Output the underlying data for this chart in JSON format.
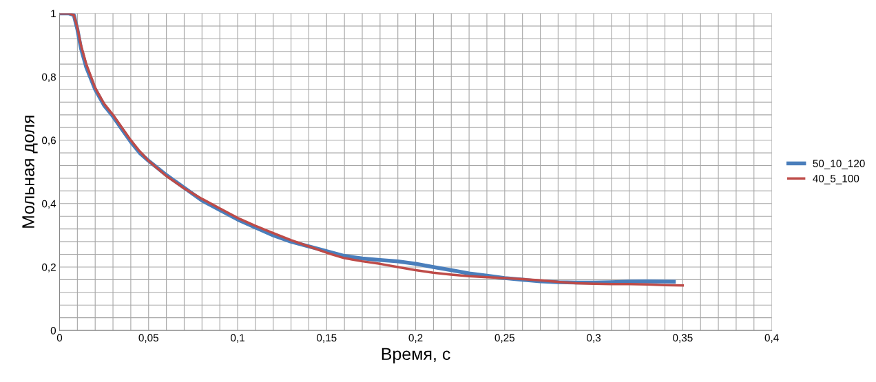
{
  "chart_data": {
    "type": "line",
    "xlabel": "Время, с",
    "ylabel": "Мольная доля",
    "xlim": [
      0,
      0.4
    ],
    "ylim": [
      0,
      1
    ],
    "xticks": [
      0,
      {
        "value": 0.01,
        "label": null
      },
      {
        "value": 0.02,
        "label": null
      },
      {
        "value": 0.03,
        "label": null
      },
      {
        "value": 0.04,
        "label": null
      },
      {
        "value": 0.05,
        "label": "0,05"
      },
      {
        "value": 0.06,
        "label": null
      },
      {
        "value": 0.07,
        "label": null
      },
      {
        "value": 0.08,
        "label": null
      },
      {
        "value": 0.09,
        "label": null
      },
      {
        "value": 0.1,
        "label": "0,1"
      },
      {
        "value": 0.11,
        "label": null
      },
      {
        "value": 0.12,
        "label": null
      },
      {
        "value": 0.13,
        "label": null
      },
      {
        "value": 0.14,
        "label": null
      },
      {
        "value": 0.15,
        "label": "0,15"
      },
      {
        "value": 0.16,
        "label": null
      },
      {
        "value": 0.17,
        "label": null
      },
      {
        "value": 0.18,
        "label": null
      },
      {
        "value": 0.19,
        "label": null
      },
      {
        "value": 0.2,
        "label": "0,2"
      },
      {
        "value": 0.21,
        "label": null
      },
      {
        "value": 0.22,
        "label": null
      },
      {
        "value": 0.23,
        "label": null
      },
      {
        "value": 0.24,
        "label": null
      },
      {
        "value": 0.25,
        "label": "0,25"
      },
      {
        "value": 0.26,
        "label": null
      },
      {
        "value": 0.27,
        "label": null
      },
      {
        "value": 0.28,
        "label": null
      },
      {
        "value": 0.29,
        "label": null
      },
      {
        "value": 0.3,
        "label": "0,3"
      },
      {
        "value": 0.31,
        "label": null
      },
      {
        "value": 0.32,
        "label": null
      },
      {
        "value": 0.33,
        "label": null
      },
      {
        "value": 0.34,
        "label": null
      },
      {
        "value": 0.35,
        "label": "0,35"
      },
      {
        "value": 0.36,
        "label": null
      },
      {
        "value": 0.37,
        "label": null
      },
      {
        "value": 0.38,
        "label": null
      },
      {
        "value": 0.39,
        "label": null
      },
      {
        "value": 0.4,
        "label": "0,4"
      }
    ],
    "yticks": [
      0,
      {
        "value": 0.04,
        "label": null
      },
      {
        "value": 0.08,
        "label": null
      },
      {
        "value": 0.12,
        "label": null
      },
      {
        "value": 0.16,
        "label": null
      },
      {
        "value": 0.2,
        "label": "0,2"
      },
      {
        "value": 0.24,
        "label": null
      },
      {
        "value": 0.28,
        "label": null
      },
      {
        "value": 0.32,
        "label": null
      },
      {
        "value": 0.36,
        "label": null
      },
      {
        "value": 0.4,
        "label": "0,4"
      },
      {
        "value": 0.44,
        "label": null
      },
      {
        "value": 0.48,
        "label": null
      },
      {
        "value": 0.52,
        "label": null
      },
      {
        "value": 0.56,
        "label": null
      },
      {
        "value": 0.6,
        "label": "0,6"
      },
      {
        "value": 0.64,
        "label": null
      },
      {
        "value": 0.68,
        "label": null
      },
      {
        "value": 0.72,
        "label": null
      },
      {
        "value": 0.76,
        "label": null
      },
      {
        "value": 0.8,
        "label": "0,8"
      },
      {
        "value": 0.84,
        "label": null
      },
      {
        "value": 0.88,
        "label": null
      },
      {
        "value": 0.92,
        "label": null
      },
      {
        "value": 0.96,
        "label": null
      },
      1
    ],
    "grid": true,
    "legend": "right",
    "marker": "none",
    "line_style": "solid",
    "series": [
      {
        "name": "50_10_120",
        "color": "#4a7ebb",
        "x": [
          0,
          0.005,
          0.008,
          0.01,
          0.012,
          0.015,
          0.02,
          0.025,
          0.03,
          0.035,
          0.04,
          0.045,
          0.05,
          0.06,
          0.07,
          0.08,
          0.09,
          0.1,
          0.11,
          0.12,
          0.13,
          0.14,
          0.15,
          0.16,
          0.17,
          0.18,
          0.19,
          0.2,
          0.21,
          0.22,
          0.23,
          0.24,
          0.25,
          0.26,
          0.27,
          0.28,
          0.29,
          0.3,
          0.31,
          0.32,
          0.33,
          0.345
        ],
        "values": [
          1,
          1,
          0.995,
          0.95,
          0.89,
          0.83,
          0.76,
          0.71,
          0.675,
          0.635,
          0.595,
          0.56,
          0.535,
          0.49,
          0.45,
          0.41,
          0.38,
          0.35,
          0.325,
          0.3,
          0.28,
          0.265,
          0.25,
          0.235,
          0.227,
          0.222,
          0.218,
          0.21,
          0.2,
          0.19,
          0.18,
          0.173,
          0.165,
          0.16,
          0.155,
          0.152,
          0.151,
          0.151,
          0.152,
          0.154,
          0.155,
          0.154
        ]
      },
      {
        "name": "40_5_100",
        "color": "#be4b48",
        "x": [
          0,
          0.005,
          0.008,
          0.01,
          0.012,
          0.015,
          0.02,
          0.025,
          0.03,
          0.035,
          0.04,
          0.045,
          0.05,
          0.06,
          0.07,
          0.08,
          0.09,
          0.1,
          0.11,
          0.12,
          0.13,
          0.14,
          0.15,
          0.16,
          0.17,
          0.18,
          0.19,
          0.2,
          0.21,
          0.22,
          0.23,
          0.24,
          0.25,
          0.26,
          0.27,
          0.28,
          0.29,
          0.3,
          0.31,
          0.32,
          0.33,
          0.34,
          0.35
        ],
        "values": [
          1,
          1,
          0.995,
          0.955,
          0.9,
          0.84,
          0.765,
          0.715,
          0.68,
          0.64,
          0.6,
          0.565,
          0.535,
          0.487,
          0.448,
          0.415,
          0.385,
          0.355,
          0.33,
          0.307,
          0.285,
          0.265,
          0.245,
          0.228,
          0.218,
          0.21,
          0.2,
          0.19,
          0.182,
          0.176,
          0.171,
          0.168,
          0.165,
          0.162,
          0.158,
          0.153,
          0.149,
          0.147,
          0.146,
          0.146,
          0.145,
          0.143,
          0.142
        ]
      }
    ]
  }
}
